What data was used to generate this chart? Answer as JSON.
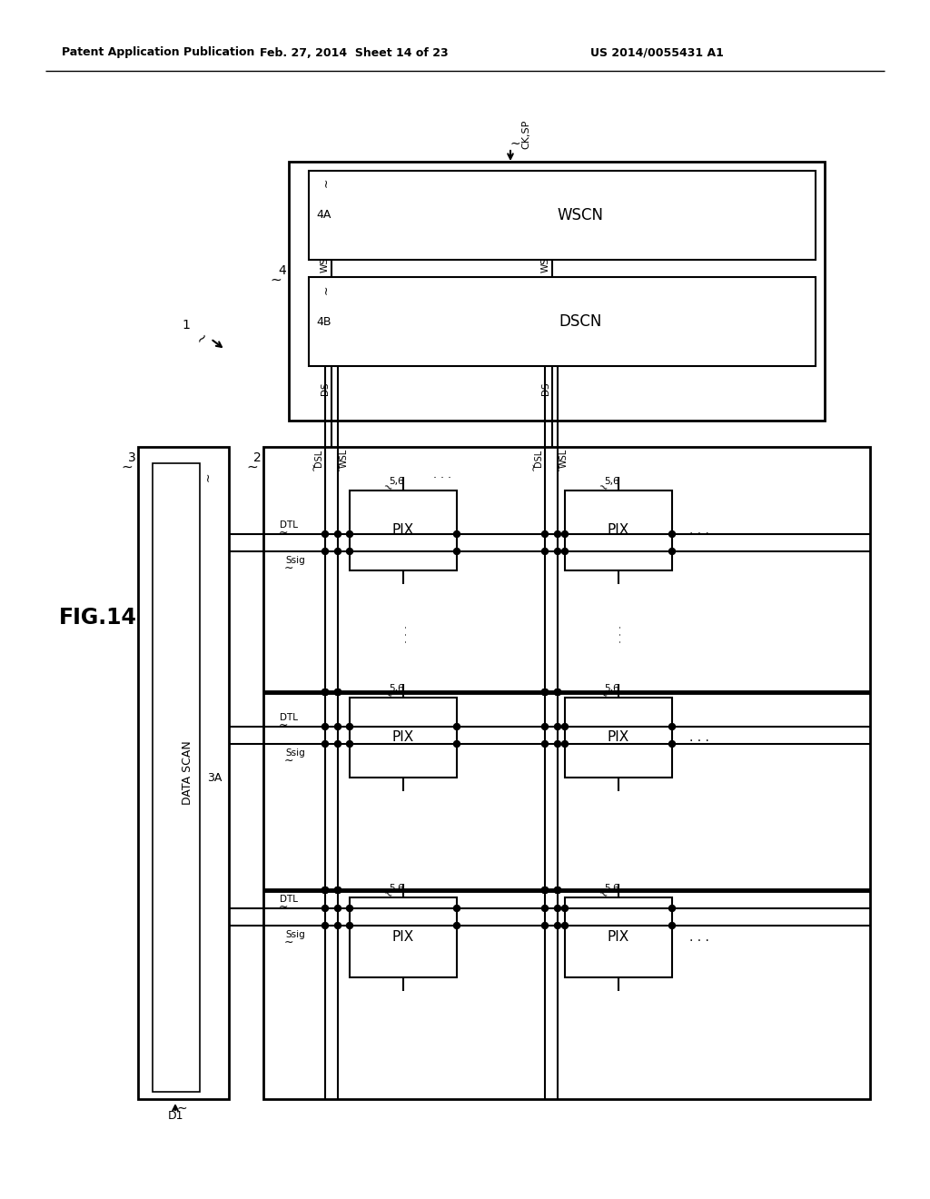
{
  "title": "FIG.14",
  "header_left": "Patent Application Publication",
  "header_center": "Feb. 27, 2014  Sheet 14 of 23",
  "header_right": "US 2014/0055431 A1",
  "bg_color": "#ffffff",
  "line_color": "#000000",
  "text_color": "#000000"
}
